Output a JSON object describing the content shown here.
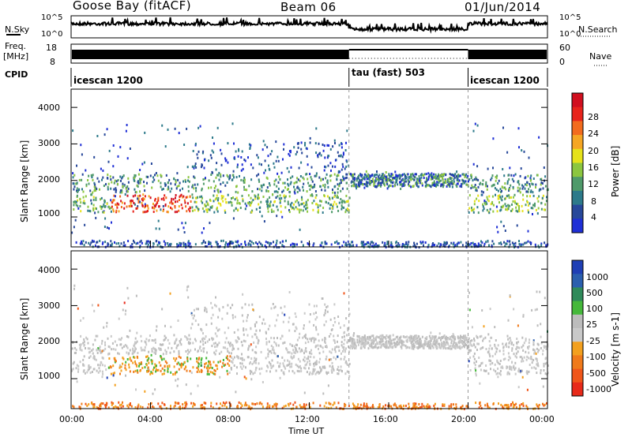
{
  "header": {
    "title": "Goose Bay (fitACF)",
    "beam": "Beam 06",
    "date": "01/Jun/2014"
  },
  "noise_panel": {
    "left_label": "N.Sky",
    "right_label": "N.Search",
    "left_ticks": [
      "10^5",
      "10^0"
    ],
    "right_ticks": [
      "10^5",
      "10^0"
    ]
  },
  "freq_panel": {
    "left_label_top": "Freq.",
    "left_label_bottom": "[MHz]",
    "right_label": "Nave",
    "left_ticks": [
      "18",
      "8"
    ],
    "right_ticks": [
      "60",
      "0"
    ]
  },
  "cpid_panel": {
    "label": "CPID",
    "segments": [
      {
        "name": "icescan 1200",
        "start_h": 0,
        "end_h": 14
      },
      {
        "name": "tau (fast) 503",
        "start_h": 14,
        "end_h": 20
      },
      {
        "name": "icescan 1200",
        "start_h": 20,
        "end_h": 24
      }
    ]
  },
  "power_panel": {
    "ylabel": "Slant Range [km]",
    "yticks": [
      "1000",
      "2000",
      "3000",
      "4000"
    ],
    "colorbar_label": "Power [dB]",
    "colorbar_ticks": [
      "4",
      "8",
      "12",
      "16",
      "20",
      "24",
      "28"
    ],
    "colors": [
      "#1f2fd6",
      "#27489a",
      "#2d7a8a",
      "#4f9a6a",
      "#8cc63f",
      "#e6e21a",
      "#f5a623",
      "#f26b1d",
      "#e8241b",
      "#d10f1f"
    ]
  },
  "velocity_panel": {
    "ylabel": "Slant Range [km]",
    "yticks": [
      "1000",
      "2000",
      "3000",
      "4000"
    ],
    "colorbar_label": "Velocity [m s-1]",
    "colorbar_ticks": [
      "1000",
      "500",
      "100",
      "25",
      "-25",
      "-100",
      "-500",
      "-1000"
    ],
    "colors": [
      "#1f3fb5",
      "#2b5fae",
      "#2f8a5a",
      "#45b83a",
      "#bcbcbc",
      "#c9c9c9",
      "#f3a01e",
      "#f07a1a",
      "#f0561a",
      "#e82a1a"
    ]
  },
  "x_axis": {
    "label": "Time UT",
    "ticks": [
      "00:00",
      "04:00",
      "08:00",
      "12:00",
      "16:00",
      "20:00",
      "00:00"
    ]
  },
  "chart_data": {
    "type": "heatmap",
    "title": "Goose Bay (fitACF) Beam 06 01/Jun/2014",
    "x": {
      "label": "Time UT",
      "range_h": [
        0,
        24
      ]
    },
    "y": {
      "label": "Slant Range [km]",
      "range_km": [
        180,
        4500
      ]
    },
    "panels": [
      {
        "name": "Power",
        "unit": "dB",
        "scale": [
          0,
          30
        ]
      },
      {
        "name": "Velocity",
        "unit": "m s-1",
        "scale": [
          -1000,
          1000
        ]
      }
    ],
    "cpid_segments": [
      {
        "label": "icescan 1200",
        "start": "00:00",
        "end": "14:00"
      },
      {
        "label": "tau (fast) 503",
        "start": "14:00",
        "end": "20:00"
      },
      {
        "label": "icescan 1200",
        "start": "20:00",
        "end": "24:00"
      }
    ]
  }
}
